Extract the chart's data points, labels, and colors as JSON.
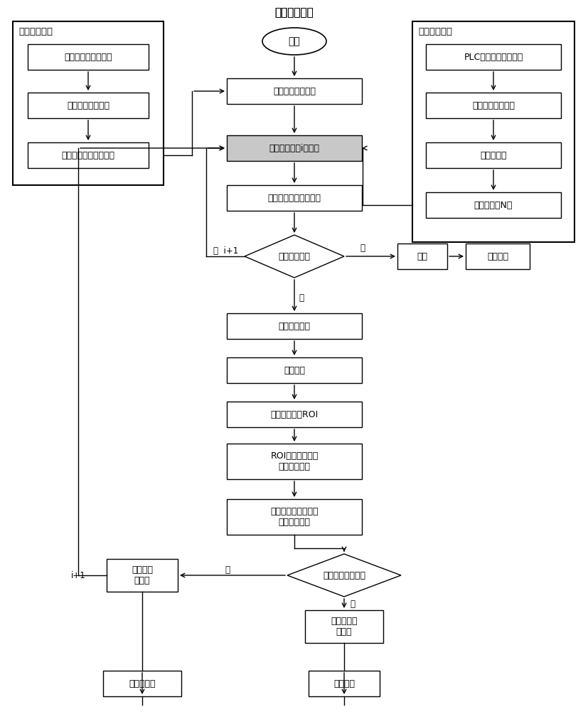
{
  "bg_color": "#ffffff",
  "ec": "#000000",
  "fc": "#ffffff",
  "sfc": "#c8c8c8",
  "center_title": "液位识别方法",
  "left_group_title": "创建模板图像",
  "right_group_title": "采集图像模块",
  "fig_width": 8.27,
  "fig_height": 10.0
}
